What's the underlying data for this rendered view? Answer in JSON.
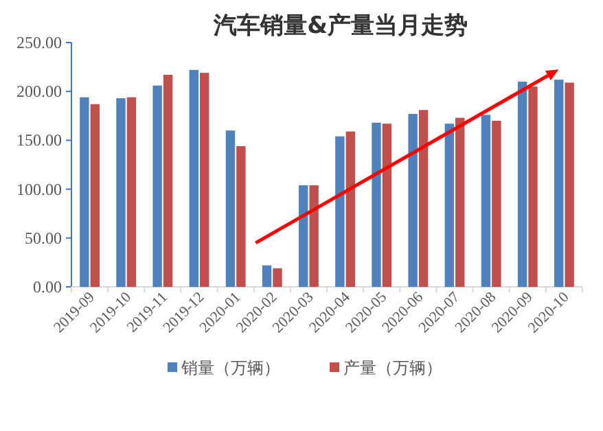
{
  "chart_data": {
    "type": "bar",
    "title": "汽车销量&产量当月走势",
    "categories": [
      "2019-09",
      "2019-10",
      "2019-11",
      "2019-12",
      "2020-01",
      "2020-02",
      "2020-03",
      "2020-04",
      "2020-05",
      "2020-06",
      "2020-07",
      "2020-08",
      "2020-09",
      "2020-10"
    ],
    "series": [
      {
        "name": "销量（万辆）",
        "color": "#4f81bd",
        "values": [
          194,
          193,
          206,
          222,
          160,
          22,
          104,
          154,
          168,
          177,
          167,
          176,
          210,
          212
        ]
      },
      {
        "name": "产量（万辆）",
        "color": "#c0504d",
        "values": [
          187,
          194,
          217,
          219,
          144,
          19,
          104,
          159,
          167,
          181,
          173,
          170,
          205,
          209
        ]
      }
    ],
    "ylim": [
      0,
      250
    ],
    "yticks": [
      {
        "value": 0,
        "label": "0.00"
      },
      {
        "value": 50,
        "label": "50.00"
      },
      {
        "value": 100,
        "label": "100.00"
      },
      {
        "value": 150,
        "label": "150.00"
      },
      {
        "value": 200,
        "label": "200.00"
      },
      {
        "value": 250,
        "label": "250.00"
      }
    ],
    "grid": false,
    "legend": "bottom"
  }
}
